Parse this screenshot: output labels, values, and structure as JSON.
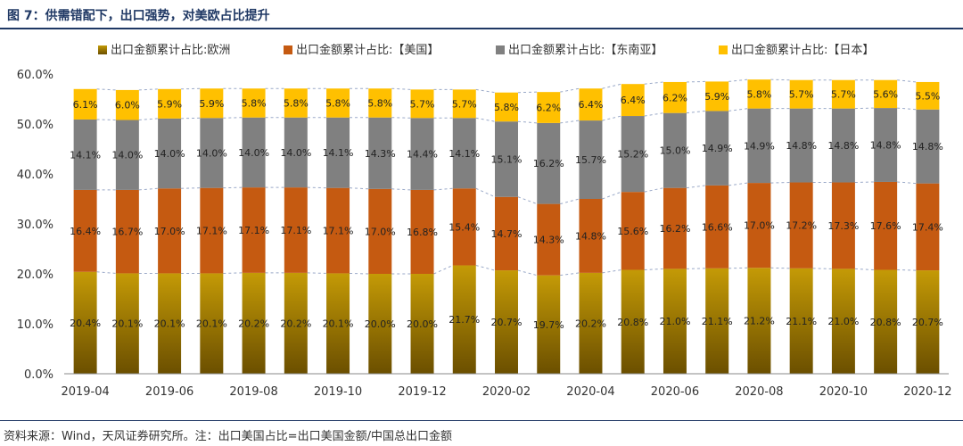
{
  "header": {
    "title": "图 7：供需错配下，出口强势，对美欧占比提升"
  },
  "footer": {
    "source": "资料来源：Wind，天风证券研究所。注：出口美国占比=出口美国金额/中国总出口金额"
  },
  "colors": {
    "eu": "#a07c06",
    "us": "#c55a11",
    "asean": "#808080",
    "japan": "#ffc000",
    "label": "#222222",
    "axis": "#888888"
  },
  "chart_data": {
    "type": "bar",
    "stacked": true,
    "title": "",
    "xlabel": "",
    "ylabel": "",
    "ylim": [
      0,
      60
    ],
    "y_ticks": [
      "0.0%",
      "10.0%",
      "20.0%",
      "30.0%",
      "40.0%",
      "50.0%",
      "60.0%"
    ],
    "legend_position": "top",
    "categories": [
      "2019-04",
      "2019-05",
      "2019-06",
      "2019-07",
      "2019-08",
      "2019-09",
      "2019-10",
      "2019-11",
      "2019-12",
      "2020-01",
      "2020-02",
      "2020-03",
      "2020-04",
      "2020-05",
      "2020-06",
      "2020-07",
      "2020-08",
      "2020-09",
      "2020-10",
      "2020-11",
      "2020-12"
    ],
    "x_tick_labels": [
      "2019-04",
      "2019-06",
      "2019-08",
      "2019-10",
      "2019-12",
      "2020-02",
      "2020-04",
      "2020-06",
      "2020-08",
      "2020-10",
      "2020-12"
    ],
    "series": [
      {
        "name": "出口金额累计占比:欧洲",
        "key": "eu",
        "values": [
          20.4,
          20.1,
          20.1,
          20.1,
          20.2,
          20.2,
          20.1,
          20.0,
          20.0,
          21.7,
          20.7,
          19.7,
          20.2,
          20.8,
          21.0,
          21.1,
          21.2,
          21.1,
          21.0,
          20.8,
          20.7
        ],
        "labels": [
          "20.4%",
          "20.1%",
          "20.1%",
          "20.1%",
          "20.2%",
          "20.2%",
          "20.1%",
          "20.0%",
          "20.0%",
          "21.7%",
          "20.7%",
          "19.7%",
          "20.2%",
          "20.8%",
          "21.0%",
          "21.1%",
          "21.2%",
          "21.1%",
          "21.0%",
          "20.8%",
          "20.7%"
        ]
      },
      {
        "name": "出口金额累计占比:【美国】",
        "key": "us",
        "values": [
          16.4,
          16.7,
          17.0,
          17.1,
          17.1,
          17.1,
          17.1,
          17.0,
          16.8,
          15.4,
          14.7,
          14.3,
          14.8,
          15.6,
          16.2,
          16.6,
          17.0,
          17.2,
          17.3,
          17.6,
          17.4
        ],
        "labels": [
          "16.4%",
          "16.7%",
          "17.0%",
          "17.1%",
          "17.1%",
          "17.1%",
          "17.1%",
          "17.0%",
          "16.8%",
          "15.4%",
          "14.7%",
          "14.3%",
          "14.8%",
          "15.6%",
          "16.2%",
          "16.6%",
          "17.0%",
          "17.2%",
          "17.3%",
          "17.6%",
          "17.4%"
        ]
      },
      {
        "name": "出口金额累计占比:【东南亚】",
        "key": "asean",
        "values": [
          14.1,
          14.0,
          14.0,
          14.0,
          14.0,
          14.0,
          14.1,
          14.3,
          14.4,
          14.1,
          15.1,
          16.2,
          15.7,
          15.2,
          15.0,
          14.9,
          14.9,
          14.8,
          14.8,
          14.8,
          14.8
        ],
        "labels": [
          "14.1%",
          "14.0%",
          "14.0%",
          "14.0%",
          "14.0%",
          "14.0%",
          "14.1%",
          "14.3%",
          "14.4%",
          "14.1%",
          "15.1%",
          "16.2%",
          "15.7%",
          "15.2%",
          "15.0%",
          "14.9%",
          "14.9%",
          "14.8%",
          "14.8%",
          "14.8%",
          "14.8%"
        ]
      },
      {
        "name": "出口金额累计占比:【日本】",
        "key": "japan",
        "values": [
          6.1,
          6.0,
          5.9,
          5.9,
          5.8,
          5.8,
          5.8,
          5.8,
          5.7,
          5.7,
          5.8,
          6.2,
          6.4,
          6.4,
          6.2,
          5.9,
          5.8,
          5.7,
          5.7,
          5.6,
          5.5
        ],
        "labels": [
          "6.1%",
          "6.0%",
          "5.9%",
          "5.9%",
          "5.8%",
          "5.8%",
          "5.8%",
          "5.8%",
          "5.7%",
          "5.7%",
          "5.8%",
          "6.2%",
          "6.4%",
          "6.4%",
          "6.2%",
          "5.9%",
          "5.8%",
          "5.7%",
          "5.7%",
          "5.6%",
          "5.5%"
        ]
      }
    ]
  }
}
